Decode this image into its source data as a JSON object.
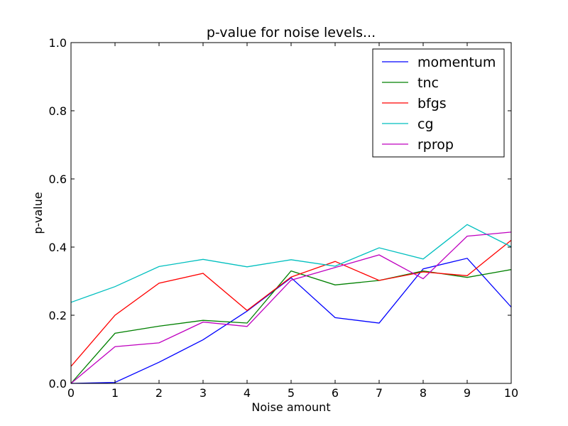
{
  "chart_data": {
    "type": "line",
    "title": "p-value for noise levels...",
    "xlabel": "Noise amount",
    "ylabel": "p-value",
    "xlim": [
      0,
      10
    ],
    "ylim": [
      0.0,
      1.0
    ],
    "x_ticks": [
      "0",
      "1",
      "2",
      "3",
      "4",
      "5",
      "6",
      "7",
      "8",
      "9",
      "10"
    ],
    "y_ticks": [
      "0.0",
      "0.2",
      "0.4",
      "0.6",
      "0.8",
      "1.0"
    ],
    "grid": false,
    "legend_position": "top-right",
    "x": [
      0,
      1,
      2,
      3,
      4,
      5,
      6,
      7,
      8,
      9,
      10
    ],
    "series": [
      {
        "name": "momentum",
        "color": "#0000ff",
        "values": [
          0.0,
          0.003,
          0.062,
          0.128,
          0.212,
          0.31,
          0.193,
          0.177,
          0.336,
          0.367,
          0.224
        ]
      },
      {
        "name": "tnc",
        "color": "#008000",
        "values": [
          0.0,
          0.147,
          0.168,
          0.185,
          0.177,
          0.33,
          0.289,
          0.302,
          0.33,
          0.311,
          0.334
        ]
      },
      {
        "name": "bfgs",
        "color": "#ff0000",
        "values": [
          0.05,
          0.2,
          0.294,
          0.323,
          0.214,
          0.312,
          0.358,
          0.302,
          0.327,
          0.316,
          0.42
        ]
      },
      {
        "name": "cg",
        "color": "#00bfbf",
        "values": [
          0.238,
          0.284,
          0.343,
          0.364,
          0.342,
          0.363,
          0.344,
          0.398,
          0.365,
          0.466,
          0.401
        ]
      },
      {
        "name": "rprop",
        "color": "#bf00bf",
        "values": [
          0.0,
          0.108,
          0.119,
          0.18,
          0.167,
          0.303,
          0.34,
          0.377,
          0.307,
          0.432,
          0.444
        ]
      }
    ]
  }
}
